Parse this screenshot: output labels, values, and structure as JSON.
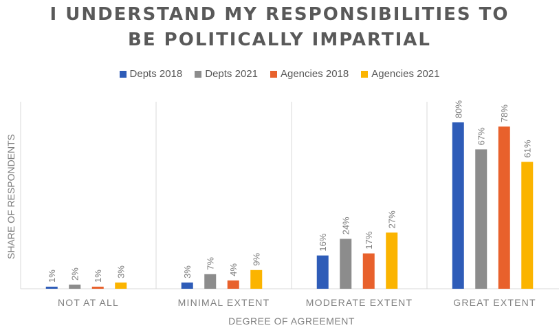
{
  "chart_data": {
    "type": "bar",
    "title_lines": [
      "I UNDERSTAND MY RESPONSIBILITIES TO",
      "BE POLITICALLY IMPARTIAL"
    ],
    "xlabel": "DEGREE OF AGREEMENT",
    "ylabel": "SHARE OF RESPONDENTS",
    "categories": [
      "NOT AT ALL",
      "MINIMAL EXTENT",
      "MODERATE EXTENT",
      "GREAT EXTENT"
    ],
    "ylim": [
      0,
      90
    ],
    "legend_position": "top-center",
    "grid": false,
    "series": [
      {
        "name": "Depts 2018",
        "color": "#2e5cb8",
        "values": [
          1,
          3,
          16,
          80
        ],
        "labels": [
          "1%",
          "3%",
          "16%",
          "80%"
        ]
      },
      {
        "name": "Depts 2021",
        "color": "#8c8c8c",
        "values": [
          2,
          7,
          24,
          67
        ],
        "labels": [
          "2%",
          "7%",
          "24%",
          "67%"
        ]
      },
      {
        "name": "Agencies 2018",
        "color": "#e8612c",
        "values": [
          1,
          4,
          17,
          78
        ],
        "labels": [
          "1%",
          "4%",
          "17%",
          "78%"
        ]
      },
      {
        "name": "Agencies 2021",
        "color": "#fbb400",
        "values": [
          3,
          9,
          27,
          61
        ],
        "labels": [
          "3%",
          "9%",
          "27%",
          "61%"
        ]
      }
    ]
  }
}
